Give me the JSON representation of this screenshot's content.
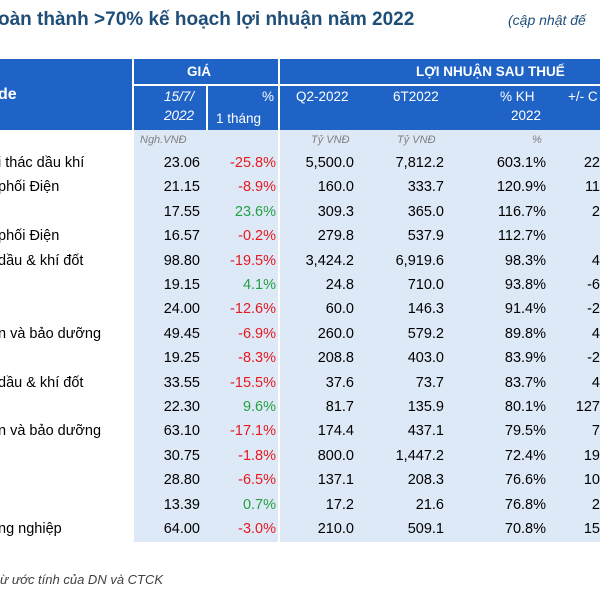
{
  "title": {
    "main": "oàn thành >70% kế hoạch lợi nhuận năm 2022",
    "note": "(cập nhật đế"
  },
  "header": {
    "name_col": "de",
    "price_group": "GIÁ",
    "profit_group": "LỢI NHUẬN SAU THUẾ",
    "price_date_l1": "15/7/",
    "price_date_l2": "2022",
    "pct_l1": "%",
    "pct_l2": "1 tháng",
    "q2": "Q2-2022",
    "h1": "6T2022",
    "kh_l1": "% KH",
    "kh_l2": "2022",
    "yoy": "+/- C"
  },
  "units": {
    "price": "Ngh.VNĐ",
    "q2": "Tỷ VNĐ",
    "h1": "Tỷ VNĐ",
    "kh": "%"
  },
  "rows": [
    {
      "name": "i thác dầu khí",
      "price": "23.06",
      "chg": "-25.8%",
      "q2": "5,500.0",
      "h1": "7,812.2",
      "kh": "603.1%",
      "yoy": "22"
    },
    {
      "name": "phối Điện",
      "price": "21.15",
      "chg": "-8.9%",
      "q2": "160.0",
      "h1": "333.7",
      "kh": "120.9%",
      "yoy": "11"
    },
    {
      "name": "",
      "price": "17.55",
      "chg": "23.6%",
      "q2": "309.3",
      "h1": "365.0",
      "kh": "116.7%",
      "yoy": "2"
    },
    {
      "name": "phối Điện",
      "price": "16.57",
      "chg": "-0.2%",
      "q2": "279.8",
      "h1": "537.9",
      "kh": "112.7%",
      "yoy": ""
    },
    {
      "name": "dầu & khí đốt",
      "price": "98.80",
      "chg": "-19.5%",
      "q2": "3,424.2",
      "h1": "6,919.6",
      "kh": "98.3%",
      "yoy": "4"
    },
    {
      "name": "",
      "price": "19.15",
      "chg": "4.1%",
      "q2": "24.8",
      "h1": "710.0",
      "kh": "93.8%",
      "yoy": "-6"
    },
    {
      "name": "",
      "price": "24.00",
      "chg": "-12.6%",
      "q2": "60.0",
      "h1": "146.3",
      "kh": "91.4%",
      "yoy": "-2"
    },
    {
      "name": "n và bảo dưỡng",
      "price": "49.45",
      "chg": "-6.9%",
      "q2": "260.0",
      "h1": "579.2",
      "kh": "89.8%",
      "yoy": "4"
    },
    {
      "name": "",
      "price": "19.25",
      "chg": "-8.3%",
      "q2": "208.8",
      "h1": "403.0",
      "kh": "83.9%",
      "yoy": "-2"
    },
    {
      "name": "dầu & khí đốt",
      "price": "33.55",
      "chg": "-15.5%",
      "q2": "37.6",
      "h1": "73.7",
      "kh": "83.7%",
      "yoy": "4"
    },
    {
      "name": "",
      "price": "22.30",
      "chg": "9.6%",
      "q2": "81.7",
      "h1": "135.9",
      "kh": "80.1%",
      "yoy": "127"
    },
    {
      "name": "n và bảo dưỡng",
      "price": "63.10",
      "chg": "-17.1%",
      "q2": "174.4",
      "h1": "437.1",
      "kh": "79.5%",
      "yoy": "7"
    },
    {
      "name": "",
      "price": "30.75",
      "chg": "-1.8%",
      "q2": "800.0",
      "h1": "1,447.2",
      "kh": "72.4%",
      "yoy": "19"
    },
    {
      "name": "",
      "price": "28.80",
      "chg": "-6.5%",
      "q2": "137.1",
      "h1": "208.3",
      "kh": "76.6%",
      "yoy": "10"
    },
    {
      "name": "",
      "price": "13.39",
      "chg": "0.7%",
      "q2": "17.2",
      "h1": "21.6",
      "kh": "76.8%",
      "yoy": "2"
    },
    {
      "name": "ng nghiệp",
      "price": "64.00",
      "chg": "-3.0%",
      "q2": "210.0",
      "h1": "509.1",
      "kh": "70.8%",
      "yoy": "15"
    }
  ],
  "footnote": "ừ ước tính của DN và CTCK",
  "colors": {
    "header_bg": "#1f63c6",
    "band_bg": "#dde9f7",
    "negative": "#e8191f",
    "positive": "#25a043",
    "title": "#1f4e79"
  }
}
